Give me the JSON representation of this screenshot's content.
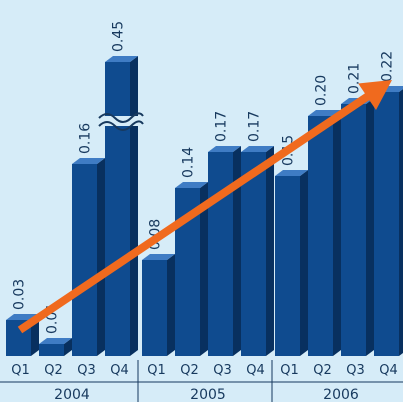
{
  "chart_data": {
    "type": "bar",
    "title": "",
    "xlabel": "",
    "ylabel": "",
    "grid": false,
    "groups": [
      {
        "label": "2004",
        "categories": [
          "Q1",
          "Q2",
          "Q3",
          "Q4"
        ],
        "values": [
          0.03,
          0.01,
          0.16,
          0.45
        ],
        "value_labels": [
          "0.03",
          "0.01",
          "0.16",
          "0.45"
        ]
      },
      {
        "label": "2005",
        "categories": [
          "Q1",
          "Q2",
          "Q3",
          "Q4"
        ],
        "values": [
          0.08,
          0.14,
          0.17,
          0.17
        ],
        "value_labels": [
          "0.08",
          "0.14",
          "0.17",
          "0.17"
        ]
      },
      {
        "label": "2006",
        "categories": [
          "Q1",
          "Q2",
          "Q3",
          "Q4"
        ],
        "values": [
          0.15,
          0.2,
          0.21,
          0.22
        ],
        "value_labels": [
          "0.15",
          "0.20",
          "0.21",
          "0.22"
        ]
      }
    ],
    "axis_break": {
      "group": 0,
      "bar": 3
    },
    "trend_arrow": true,
    "colors": {
      "background": "#d6ecf8",
      "bar_front": "#0f4b8f",
      "bar_side": "#08305f",
      "bar_top": "#3f7cc4",
      "arrow": "#f06a1e",
      "text": "#17395e"
    }
  }
}
